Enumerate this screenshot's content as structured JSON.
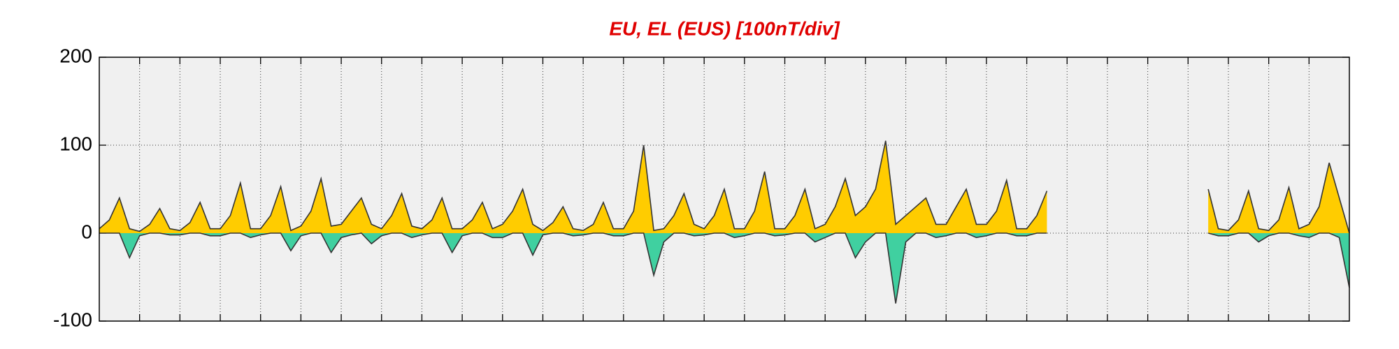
{
  "chart_data": {
    "type": "area",
    "title": "EU, EL (EUS)  [100nT/div]",
    "x": [
      0,
      0.25,
      0.5,
      0.75,
      1,
      1.25,
      1.5,
      1.75,
      2,
      2.25,
      2.5,
      2.75,
      3,
      3.25,
      3.5,
      3.75,
      4,
      4.25,
      4.5,
      4.75,
      5,
      5.25,
      5.5,
      5.75,
      6,
      6.25,
      6.5,
      6.75,
      7,
      7.25,
      7.5,
      7.75,
      8,
      8.25,
      8.5,
      8.75,
      9,
      9.25,
      9.5,
      9.75,
      10,
      10.25,
      10.5,
      10.75,
      11,
      11.25,
      11.5,
      11.75,
      12,
      12.25,
      12.5,
      12.75,
      13,
      13.25,
      13.5,
      13.75,
      14,
      14.25,
      14.5,
      14.75,
      15,
      15.25,
      15.5,
      15.75,
      16,
      16.25,
      16.5,
      16.75,
      17,
      17.25,
      17.5,
      17.75,
      18,
      18.25,
      18.5,
      18.75,
      19,
      19.25,
      19.5,
      19.75,
      20,
      20.25,
      20.5,
      20.75,
      21,
      21.25,
      21.5,
      21.75,
      22,
      22.25,
      22.5,
      22.75,
      23,
      23.25,
      23.5,
      23.75,
      24,
      24.25,
      24.5,
      24.75,
      25,
      25.25,
      25.5,
      25.75,
      26,
      26.25,
      26.5,
      26.75,
      27,
      27.25,
      27.5,
      27.75,
      28,
      28.25,
      28.5,
      28.75,
      29,
      29.25,
      29.5,
      29.75,
      30,
      30.25,
      30.5,
      30.75,
      31
    ],
    "series": [
      {
        "color": "#ffcc00",
        "line_color": "#333333",
        "values": [
          5,
          15,
          40,
          5,
          2,
          10,
          28,
          5,
          3,
          12,
          35,
          5,
          5,
          20,
          57,
          5,
          5,
          20,
          53,
          3,
          8,
          25,
          62,
          8,
          10,
          25,
          40,
          10,
          5,
          20,
          45,
          8,
          5,
          15,
          40,
          5,
          5,
          15,
          35,
          5,
          10,
          25,
          50,
          10,
          3,
          12,
          30,
          5,
          3,
          10,
          35,
          5,
          5,
          25,
          100,
          3,
          5,
          20,
          45,
          10,
          5,
          20,
          50,
          5,
          5,
          25,
          70,
          5,
          5,
          20,
          50,
          5,
          10,
          30,
          62,
          20,
          30,
          50,
          105,
          10,
          20,
          30,
          40,
          10,
          10,
          30,
          50,
          10,
          10,
          25,
          60,
          5,
          5,
          20,
          48,
          null,
          null,
          null,
          null,
          null,
          null,
          null,
          null,
          null,
          null,
          null,
          null,
          null,
          null,
          null,
          50,
          5,
          3,
          15,
          48,
          5,
          3,
          15,
          52,
          5,
          10,
          30,
          80,
          40,
          0
        ]
      },
      {
        "color": "#40d0a0",
        "line_color": "#333333",
        "values": [
          0,
          0,
          0,
          -28,
          -3,
          0,
          0,
          -2,
          -2,
          0,
          0,
          -3,
          -3,
          0,
          0,
          -5,
          -2,
          0,
          0,
          -20,
          -3,
          0,
          0,
          -22,
          -5,
          -2,
          0,
          -12,
          -3,
          0,
          0,
          -5,
          -2,
          0,
          0,
          -22,
          -3,
          0,
          0,
          -5,
          -5,
          0,
          0,
          -25,
          -2,
          0,
          0,
          -3,
          -2,
          0,
          0,
          -3,
          -3,
          0,
          0,
          -48,
          -10,
          0,
          0,
          -3,
          -2,
          0,
          0,
          -5,
          -3,
          0,
          0,
          -3,
          -2,
          0,
          0,
          -10,
          -5,
          0,
          0,
          -28,
          -10,
          0,
          0,
          -80,
          -10,
          0,
          0,
          -5,
          -3,
          0,
          0,
          -5,
          -3,
          0,
          0,
          -3,
          -3,
          0,
          0,
          null,
          null,
          null,
          null,
          null,
          null,
          null,
          null,
          null,
          null,
          null,
          null,
          null,
          null,
          null,
          0,
          -3,
          -3,
          0,
          0,
          -10,
          -3,
          0,
          0,
          -3,
          -5,
          0,
          0,
          -5,
          -62
        ]
      }
    ],
    "xlim": [
      0,
      31
    ],
    "xticks": [
      1,
      2,
      3,
      4,
      5,
      6,
      7,
      8,
      9,
      10,
      11,
      12,
      13,
      14,
      15,
      16,
      17,
      18,
      19,
      20,
      21,
      22,
      23,
      24,
      25,
      26,
      27,
      28,
      29,
      30
    ],
    "ylim": [
      -100,
      200
    ],
    "yticks": [
      200,
      100,
      0,
      -100
    ],
    "grid": true,
    "background": "#f0f0f0"
  }
}
